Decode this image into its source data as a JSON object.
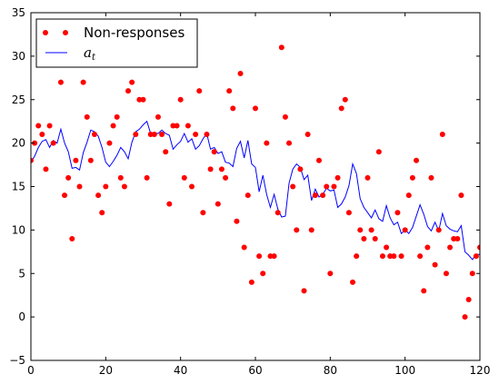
{
  "chart_data": {
    "type": "scatter",
    "title": "",
    "xlabel": "",
    "ylabel": "",
    "xlim": [
      0,
      120
    ],
    "ylim": [
      -5,
      35
    ],
    "grid": false,
    "legend_position": "top-left",
    "x_ticks": [
      0,
      20,
      40,
      60,
      80,
      100,
      120
    ],
    "y_ticks": [
      -5,
      0,
      5,
      10,
      15,
      20,
      25,
      30,
      35
    ],
    "series": [
      {
        "name": "Non-responses",
        "kind": "scatter",
        "color": "#ff0000",
        "x": [
          0,
          1,
          2,
          3,
          4,
          5,
          6,
          7,
          8,
          9,
          10,
          11,
          12,
          13,
          14,
          15,
          16,
          17,
          18,
          19,
          20,
          21,
          22,
          23,
          24,
          25,
          26,
          27,
          28,
          29,
          30,
          31,
          32,
          33,
          34,
          35,
          36,
          37,
          38,
          39,
          40,
          41,
          42,
          43,
          44,
          45,
          46,
          47,
          48,
          49,
          50,
          51,
          52,
          53,
          54,
          55,
          56,
          57,
          58,
          59,
          60,
          61,
          62,
          63,
          64,
          65,
          66,
          67,
          68,
          69,
          70,
          71,
          72,
          73,
          74,
          75,
          76,
          77,
          78,
          79,
          80,
          81,
          82,
          83,
          84,
          85,
          86,
          87,
          88,
          89,
          90,
          91,
          92,
          93,
          94,
          95,
          96,
          97,
          98,
          99,
          100,
          101,
          102,
          103,
          104,
          105,
          106,
          107,
          108,
          109,
          110,
          111,
          112,
          113,
          114,
          115,
          116,
          117,
          118,
          119,
          120
        ],
        "y": [
          18,
          20,
          22,
          21,
          17,
          22,
          20,
          33,
          27,
          14,
          16,
          9,
          18,
          15,
          27,
          23,
          18,
          21,
          14,
          12,
          15,
          20,
          22,
          23,
          16,
          15,
          26,
          27,
          21,
          25,
          25,
          16,
          21,
          21,
          23,
          21,
          19,
          13,
          22,
          22,
          25,
          16,
          22,
          15,
          21,
          26,
          12,
          21,
          17,
          19,
          13,
          17,
          16,
          26,
          24,
          11,
          28,
          8,
          14,
          4,
          24,
          7,
          5,
          20,
          7,
          7,
          12,
          31,
          23,
          20,
          15,
          10,
          17,
          3,
          21,
          10,
          14,
          18,
          14,
          15,
          5,
          15,
          16,
          24,
          25,
          12,
          4,
          7,
          10,
          9,
          16,
          10,
          9,
          19,
          7,
          8,
          7,
          7,
          12,
          7,
          10,
          14,
          16,
          18,
          7,
          3,
          8,
          16,
          6,
          10,
          21,
          5,
          8,
          9,
          9,
          14,
          0,
          2,
          5,
          7,
          8
        ]
      },
      {
        "name": "a_t",
        "kind": "line",
        "color": "#0000ff",
        "x": [
          0,
          1,
          2,
          3,
          4,
          5,
          6,
          7,
          8,
          9,
          10,
          11,
          12,
          13,
          14,
          15,
          16,
          17,
          18,
          19,
          20,
          21,
          22,
          23,
          24,
          25,
          26,
          27,
          28,
          29,
          30,
          31,
          32,
          33,
          34,
          35,
          36,
          37,
          38,
          39,
          40,
          41,
          42,
          43,
          44,
          45,
          46,
          47,
          48,
          49,
          50,
          51,
          52,
          53,
          54,
          55,
          56,
          57,
          58,
          59,
          60,
          61,
          62,
          63,
          64,
          65,
          66,
          67,
          68,
          69,
          70,
          71,
          72,
          73,
          74,
          75,
          76,
          77,
          78,
          79,
          80,
          81,
          82,
          83,
          84,
          85,
          86,
          87,
          88,
          89,
          90,
          91,
          92,
          93,
          94,
          95,
          96,
          97,
          98,
          99,
          100,
          101,
          102,
          103,
          104,
          105,
          106,
          107,
          108,
          109,
          110,
          111,
          112,
          113,
          114,
          115,
          116,
          117,
          118,
          119,
          120
        ],
        "y": [
          17.8,
          18.5,
          19.5,
          20.2,
          20.4,
          19.5,
          20.3,
          20.0,
          21.6,
          20.0,
          19.0,
          17.1,
          17.2,
          16.9,
          18.9,
          20.1,
          21.5,
          21.3,
          20.8,
          19.5,
          17.8,
          17.3,
          17.9,
          18.6,
          19.5,
          19.0,
          18.2,
          20.1,
          21.3,
          21.6,
          22.1,
          22.5,
          21.1,
          21.2,
          21.1,
          21.5,
          21.1,
          20.9,
          19.3,
          19.8,
          20.2,
          21.1,
          20.1,
          20.5,
          19.3,
          19.7,
          20.5,
          21.1,
          19.3,
          19.5,
          18.8,
          19.0,
          17.8,
          17.7,
          17.3,
          19.4,
          20.2,
          18.3,
          20.3,
          17.6,
          17.2,
          14.4,
          16.3,
          14.1,
          12.6,
          14.1,
          12.4,
          11.5,
          11.6,
          15.4,
          17.0,
          17.6,
          17.2,
          15.8,
          16.3,
          13.4,
          14.7,
          13.8,
          14.1,
          14.8,
          14.5,
          14.6,
          12.6,
          13.0,
          13.8,
          15.1,
          17.6,
          16.5,
          13.6,
          12.6,
          12.0,
          11.4,
          12.3,
          11.3,
          11.0,
          12.8,
          11.4,
          10.6,
          10.9,
          9.6,
          10.0,
          9.6,
          10.3,
          11.6,
          12.9,
          11.8,
          10.4,
          9.9,
          10.9,
          9.9,
          11.9,
          10.5,
          10.1,
          9.9,
          9.8,
          10.5,
          7.5,
          7.1,
          6.6,
          7.2,
          7.2
        ]
      }
    ]
  },
  "legend": {
    "items": [
      {
        "label": "Non-responses",
        "kind": "marker",
        "color": "#ff0000"
      },
      {
        "label": "a",
        "subscript": "t",
        "kind": "line",
        "color": "#0000ff"
      }
    ]
  }
}
